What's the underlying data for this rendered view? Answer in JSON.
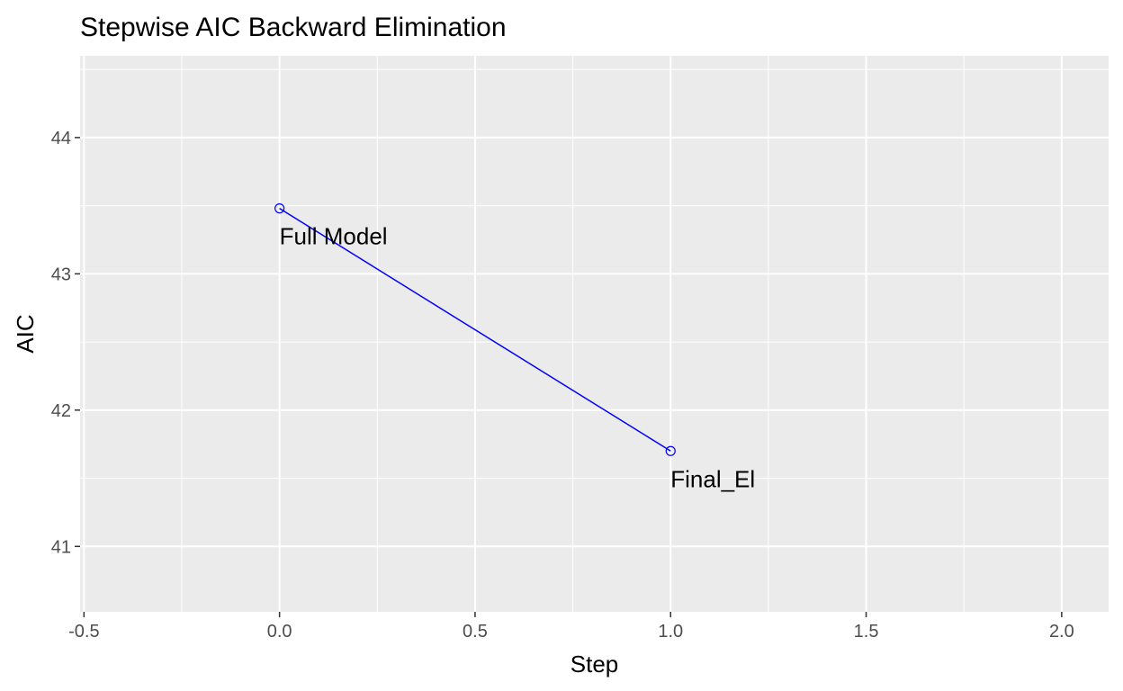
{
  "chart_data": {
    "type": "line",
    "title": "Stepwise AIC Backward Elimination",
    "xlabel": "Step",
    "ylabel": "AIC",
    "xlim": [
      -0.51,
      2.12
    ],
    "ylim": [
      40.52,
      44.6
    ],
    "x_ticks": [
      -0.5,
      0.0,
      0.5,
      1.0,
      1.5,
      2.0
    ],
    "x_tick_labels": [
      "-0.5",
      "0.0",
      "0.5",
      "1.0",
      "1.5",
      "2.0"
    ],
    "y_ticks": [
      41,
      42,
      43,
      44
    ],
    "y_tick_labels": [
      "41",
      "42",
      "43",
      "44"
    ],
    "grid": true,
    "series": [
      {
        "color": "#0000ff",
        "points": [
          {
            "x": 0,
            "y": 43.48,
            "label": "Full Model"
          },
          {
            "x": 1,
            "y": 41.7,
            "label": "Final_El"
          }
        ]
      }
    ]
  }
}
